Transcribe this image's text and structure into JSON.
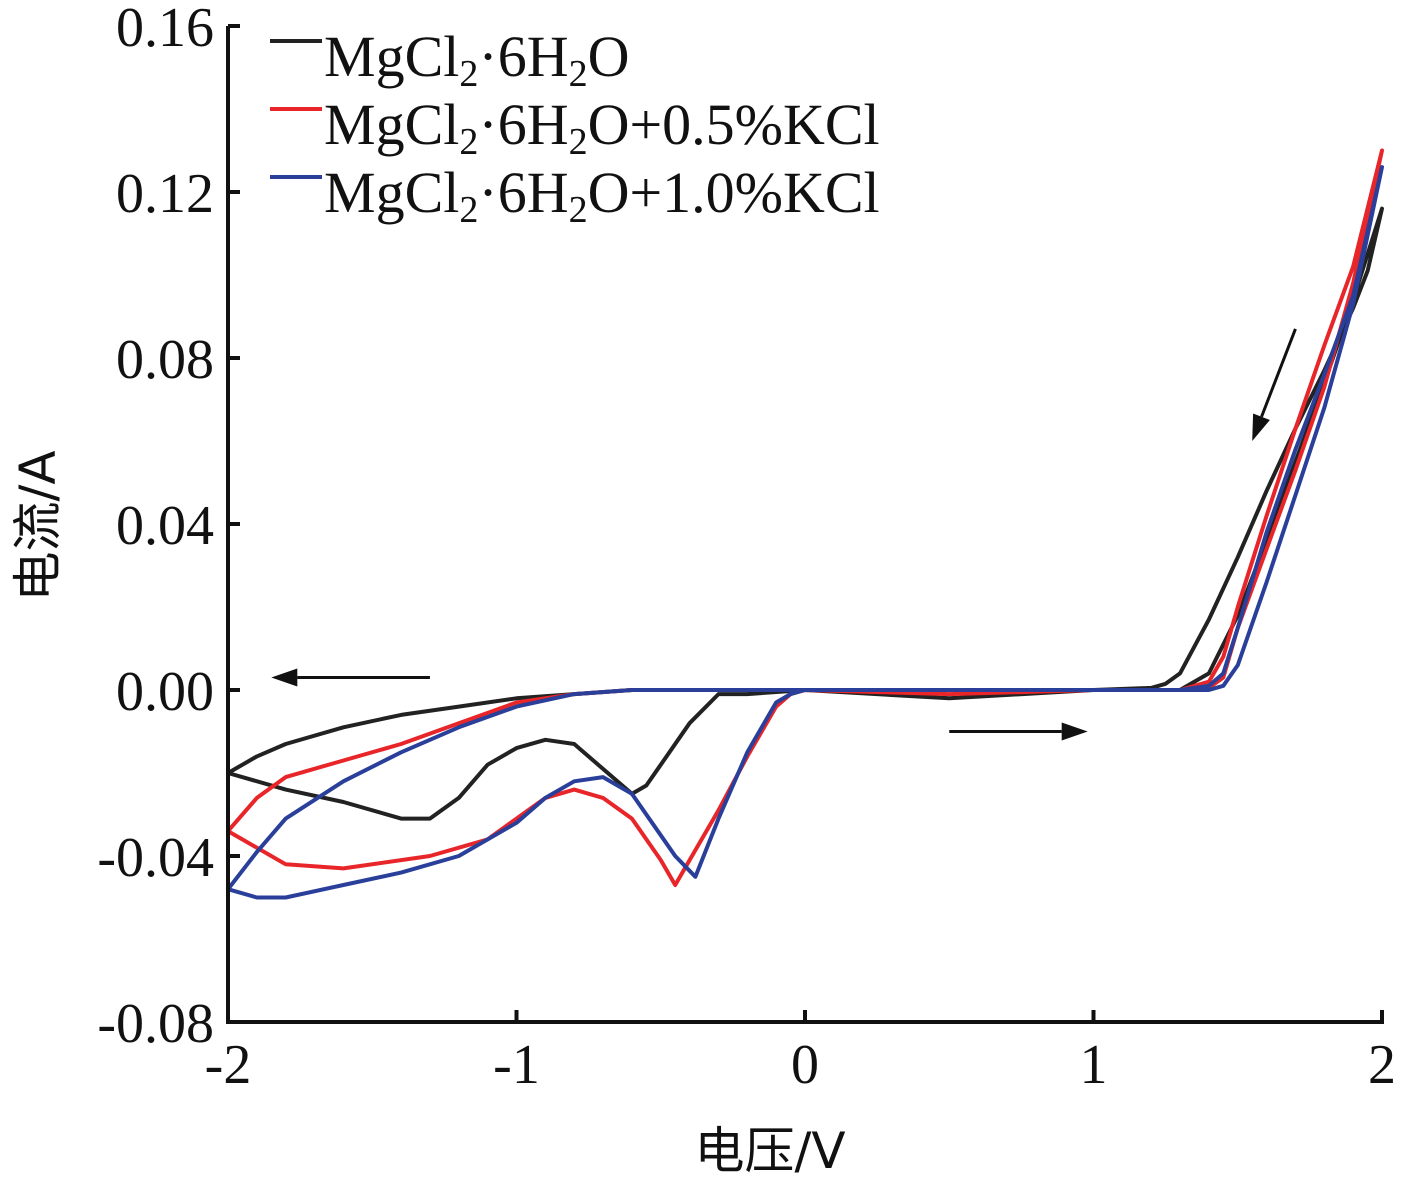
{
  "chart_data": {
    "type": "line",
    "xlabel": "电压/V",
    "ylabel": "电流/A",
    "xlim": [
      -2,
      2
    ],
    "ylim": [
      -0.08,
      0.16
    ],
    "x_ticks": [
      {
        "value": -2,
        "label": "-2"
      },
      {
        "value": -1,
        "label": "-1"
      },
      {
        "value": 0,
        "label": "0"
      },
      {
        "value": 1,
        "label": "1"
      },
      {
        "value": 2,
        "label": "2"
      }
    ],
    "y_ticks": [
      {
        "value": -0.08,
        "label": "-0.08"
      },
      {
        "value": -0.04,
        "label": "-0.04"
      },
      {
        "value": 0.0,
        "label": "0.00"
      },
      {
        "value": 0.04,
        "label": "0.04"
      },
      {
        "value": 0.08,
        "label": "0.08"
      },
      {
        "value": 0.12,
        "label": "0.12"
      },
      {
        "value": 0.16,
        "label": "0.16"
      }
    ],
    "grid": false,
    "legend_position": "top-left",
    "series": [
      {
        "name": "MgCl₂·6H₂O",
        "legend": {
          "main": "MgCl",
          "sub1": "2",
          "mid": "·6H",
          "sub2": "2",
          "tail": "O"
        },
        "color": "#222222",
        "x": [
          0.0,
          0.5,
          1.0,
          1.2,
          1.3,
          1.4,
          1.5,
          1.6,
          1.7,
          1.8,
          1.9,
          2.0,
          1.95,
          1.9,
          1.8,
          1.7,
          1.6,
          1.5,
          1.4,
          1.3,
          1.25,
          1.2,
          1.0,
          0.5,
          0.0,
          -0.2,
          -0.3,
          -0.4,
          -0.5,
          -0.55,
          -0.6,
          -0.7,
          -0.8,
          -0.9,
          -1.0,
          -1.1,
          -1.2,
          -1.3,
          -1.4,
          -1.6,
          -1.8,
          -2.0,
          -1.9,
          -1.8,
          -1.6,
          -1.4,
          -1.2,
          -1.0,
          -0.8,
          -0.6,
          -0.4,
          -0.2,
          0.0
        ],
        "y": [
          0.0,
          0.0,
          0.0,
          0.0,
          0.0,
          0.004,
          0.018,
          0.036,
          0.055,
          0.074,
          0.094,
          0.116,
          0.101,
          0.092,
          0.077,
          0.063,
          0.048,
          0.032,
          0.017,
          0.004,
          0.0015,
          0.0005,
          0.0,
          -0.002,
          0.0,
          -0.001,
          -0.001,
          -0.008,
          -0.018,
          -0.023,
          -0.025,
          -0.019,
          -0.013,
          -0.012,
          -0.014,
          -0.018,
          -0.026,
          -0.031,
          -0.031,
          -0.027,
          -0.024,
          -0.02,
          -0.016,
          -0.013,
          -0.009,
          -0.006,
          -0.004,
          -0.002,
          -0.001,
          0.0,
          0.0,
          0.0,
          0.0
        ]
      },
      {
        "name": "MgCl₂·6H₂O+0.5%KCl",
        "legend": {
          "main": "MgCl",
          "sub1": "2",
          "mid": "·6H",
          "sub2": "2",
          "tail": "O+0.5%KCl"
        },
        "color": "#e8262a",
        "x": [
          0.0,
          0.5,
          1.0,
          1.3,
          1.4,
          1.45,
          1.5,
          1.6,
          1.7,
          1.8,
          1.9,
          2.0,
          1.9,
          1.8,
          1.7,
          1.6,
          1.5,
          1.45,
          1.4,
          1.3,
          1.0,
          0.5,
          0.0,
          -0.05,
          -0.1,
          -0.2,
          -0.3,
          -0.4,
          -0.45,
          -0.5,
          -0.6,
          -0.7,
          -0.8,
          -0.9,
          -1.0,
          -1.1,
          -1.3,
          -1.6,
          -1.8,
          -2.0,
          -1.9,
          -1.8,
          -1.6,
          -1.4,
          -1.2,
          -1.0,
          -0.8,
          -0.6,
          -0.4,
          -0.2,
          0.0
        ],
        "y": [
          0.0,
          0.0,
          0.0,
          0.0,
          0.0005,
          0.003,
          0.015,
          0.034,
          0.053,
          0.073,
          0.098,
          0.13,
          0.102,
          0.083,
          0.063,
          0.042,
          0.02,
          0.008,
          0.002,
          0.0,
          0.0,
          -0.001,
          0.0,
          -0.001,
          -0.004,
          -0.016,
          -0.029,
          -0.041,
          -0.047,
          -0.041,
          -0.031,
          -0.026,
          -0.024,
          -0.026,
          -0.031,
          -0.036,
          -0.04,
          -0.043,
          -0.042,
          -0.034,
          -0.026,
          -0.021,
          -0.017,
          -0.013,
          -0.008,
          -0.003,
          -0.001,
          0.0,
          0.0,
          0.0,
          0.0
        ]
      },
      {
        "name": "MgCl₂·6H₂O+1.0%KCl",
        "legend": {
          "main": "MgCl",
          "sub1": "2",
          "mid": "·6H",
          "sub2": "2",
          "tail": "O+1.0%KCl"
        },
        "color": "#2a3f9a",
        "x": [
          0.0,
          0.5,
          1.0,
          1.3,
          1.4,
          1.45,
          1.5,
          1.6,
          1.7,
          1.8,
          1.9,
          2.0,
          1.9,
          1.8,
          1.7,
          1.6,
          1.5,
          1.45,
          1.4,
          1.3,
          1.0,
          0.5,
          0.0,
          -0.05,
          -0.1,
          -0.2,
          -0.3,
          -0.38,
          -0.45,
          -0.5,
          -0.6,
          -0.7,
          -0.8,
          -0.9,
          -1.0,
          -1.2,
          -1.4,
          -1.6,
          -1.8,
          -1.9,
          -2.0,
          -1.9,
          -1.8,
          -1.6,
          -1.4,
          -1.2,
          -1.0,
          -0.8,
          -0.6,
          -0.4,
          -0.2,
          0.0
        ],
        "y": [
          0.0,
          0.0,
          0.0,
          0.0,
          0.0,
          0.001,
          0.006,
          0.026,
          0.047,
          0.068,
          0.093,
          0.126,
          0.095,
          0.076,
          0.058,
          0.038,
          0.015,
          0.004,
          0.001,
          0.0,
          0.0,
          0.0,
          0.0,
          -0.001,
          -0.003,
          -0.015,
          -0.031,
          -0.045,
          -0.04,
          -0.035,
          -0.025,
          -0.021,
          -0.022,
          -0.026,
          -0.032,
          -0.04,
          -0.044,
          -0.047,
          -0.05,
          -0.05,
          -0.048,
          -0.039,
          -0.031,
          -0.022,
          -0.015,
          -0.009,
          -0.004,
          -0.001,
          0.0,
          0.0,
          0.0,
          0.0
        ]
      }
    ],
    "annotations": [
      {
        "type": "arrow",
        "direction": "left",
        "x0": -1.3,
        "y0": 0.003,
        "x1": -1.85,
        "y1": 0.003,
        "color": "#111111"
      },
      {
        "type": "arrow",
        "direction": "right",
        "x0": 0.5,
        "y0": -0.01,
        "x1": 0.98,
        "y1": -0.01,
        "color": "#111111"
      },
      {
        "type": "arrow",
        "direction": "down",
        "x0": 1.7,
        "y0": 0.087,
        "x1": 1.55,
        "y1": 0.06,
        "color": "#111111"
      }
    ]
  }
}
